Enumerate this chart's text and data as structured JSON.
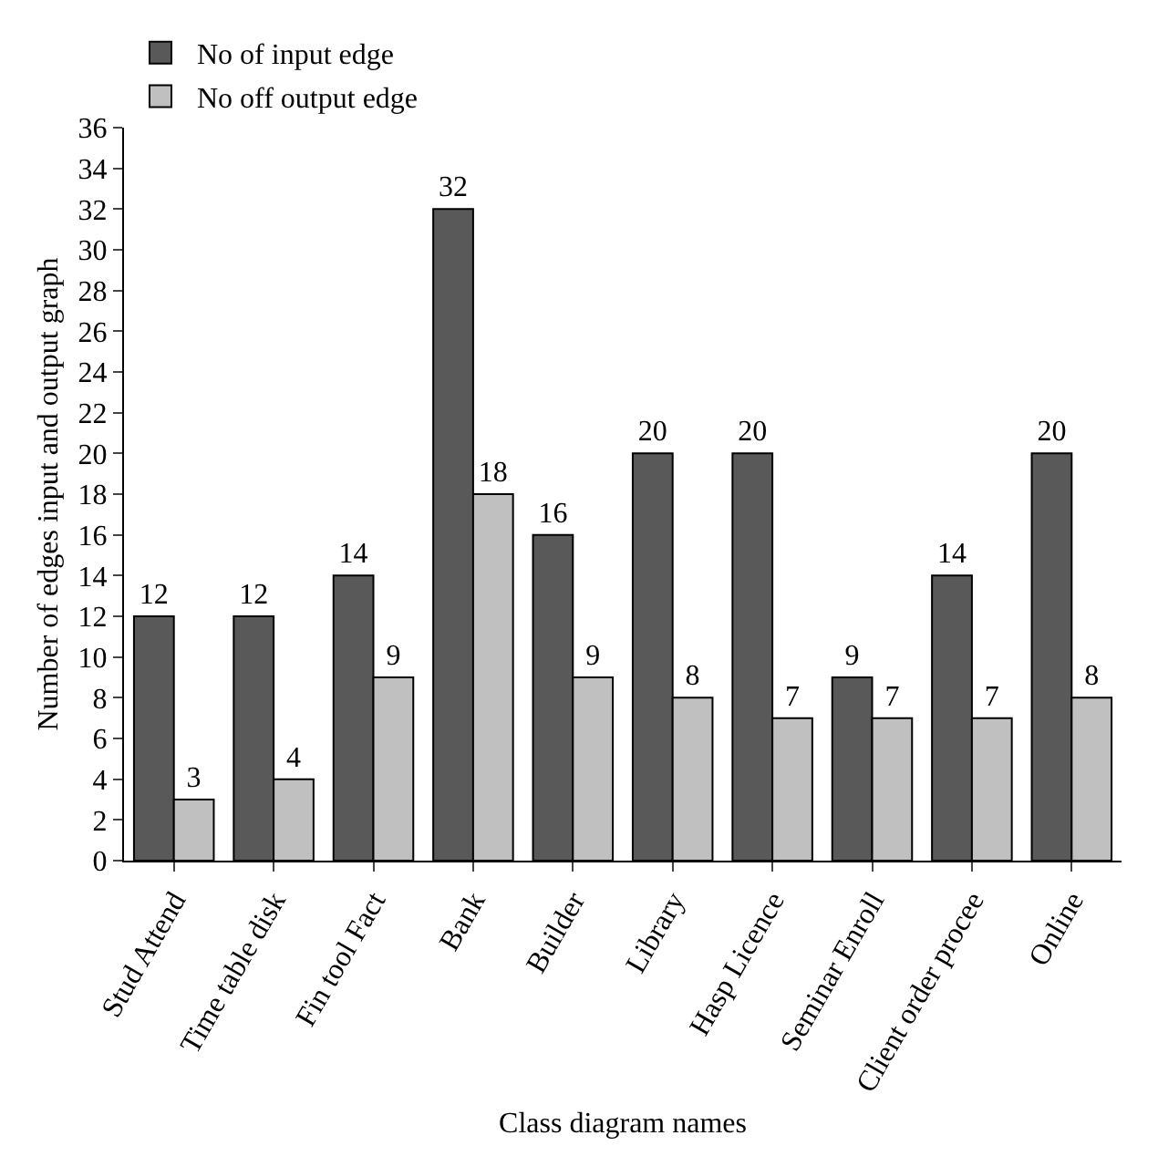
{
  "chart_data": {
    "type": "bar",
    "xlabel": "Class diagram names",
    "ylabel": "Number of edges input and output graph",
    "categories": [
      "Stud Attend",
      "Time table disk",
      "Fin tool Fact",
      "Bank",
      "Builder",
      "Library",
      "Hasp Licence",
      "Seminar Enroll",
      "Client order procee",
      "Online"
    ],
    "series": [
      {
        "name": "No of input edge",
        "color": "#595959",
        "values": [
          12,
          12,
          14,
          32,
          16,
          20,
          20,
          9,
          14,
          20
        ]
      },
      {
        "name": "No off output edge",
        "color": "#c0c0c0",
        "values": [
          3,
          4,
          9,
          18,
          9,
          8,
          7,
          7,
          7,
          8
        ]
      }
    ],
    "ylim": [
      0,
      36
    ],
    "yticks": [
      0,
      2,
      4,
      6,
      8,
      10,
      12,
      14,
      16,
      18,
      20,
      22,
      24,
      26,
      28,
      30,
      32,
      34,
      36
    ],
    "data_labels": true,
    "grid": false,
    "legend": "top left"
  }
}
